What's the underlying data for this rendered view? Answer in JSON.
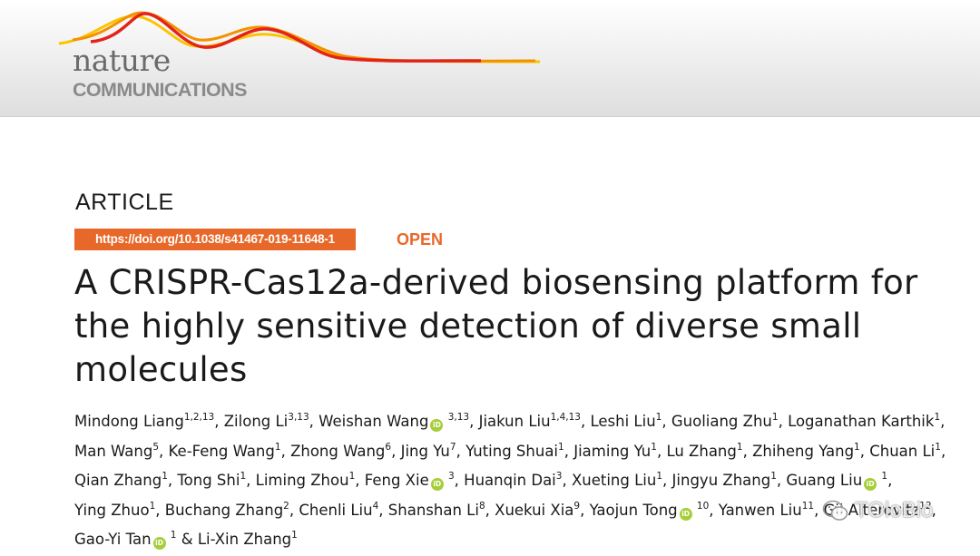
{
  "journal": {
    "logo_line1": "nature",
    "logo_line2": "COMMUNICATIONS"
  },
  "article": {
    "type": "ARTICLE",
    "doi": "https://doi.org/10.1038/s41467-019-11648-1",
    "access": "OPEN",
    "title": "A CRISPR-Cas12a-derived biosensing platform for the highly sensitive detection of diverse small molecules"
  },
  "authors": [
    {
      "name": "Mindong Liang",
      "aff": "1,2,13",
      "orcid": false
    },
    {
      "name": "Zilong Li",
      "aff": "3,13",
      "orcid": false
    },
    {
      "name": "Weishan Wang",
      "aff": "3,13",
      "orcid": true
    },
    {
      "name": "Jiakun Liu",
      "aff": "1,4,13",
      "orcid": false
    },
    {
      "name": "Leshi Liu",
      "aff": "1",
      "orcid": false
    },
    {
      "name": "Guoliang Zhu",
      "aff": "1",
      "orcid": false
    },
    {
      "name": "Loganathan Karthik",
      "aff": "1",
      "orcid": false
    },
    {
      "name": "Man Wang",
      "aff": "5",
      "orcid": false
    },
    {
      "name": "Ke-Feng Wang",
      "aff": "1",
      "orcid": false
    },
    {
      "name": "Zhong Wang",
      "aff": "6",
      "orcid": false
    },
    {
      "name": "Jing Yu",
      "aff": "7",
      "orcid": false
    },
    {
      "name": "Yuting Shuai",
      "aff": "1",
      "orcid": false
    },
    {
      "name": "Jiaming Yu",
      "aff": "1",
      "orcid": false
    },
    {
      "name": "Lu Zhang",
      "aff": "1",
      "orcid": false
    },
    {
      "name": "Zhiheng Yang",
      "aff": "1",
      "orcid": false
    },
    {
      "name": "Chuan Li",
      "aff": "1",
      "orcid": false
    },
    {
      "name": "Qian Zhang",
      "aff": "1",
      "orcid": false
    },
    {
      "name": "Tong Shi",
      "aff": "1",
      "orcid": false
    },
    {
      "name": "Liming Zhou",
      "aff": "1",
      "orcid": false
    },
    {
      "name": "Feng Xie",
      "aff": "3",
      "orcid": true
    },
    {
      "name": "Huanqin Dai",
      "aff": "3",
      "orcid": false
    },
    {
      "name": "Xueting Liu",
      "aff": "1",
      "orcid": false
    },
    {
      "name": "Jingyu Zhang",
      "aff": "1",
      "orcid": false
    },
    {
      "name": "Guang Liu",
      "aff": "1",
      "orcid": true
    },
    {
      "name": "Ying Zhuo",
      "aff": "1",
      "orcid": false
    },
    {
      "name": "Buchang Zhang",
      "aff": "2",
      "orcid": false
    },
    {
      "name": "Chenli Liu",
      "aff": "4",
      "orcid": false
    },
    {
      "name": "Shanshan Li",
      "aff": "8",
      "orcid": false
    },
    {
      "name": "Xuekui Xia",
      "aff": "9",
      "orcid": false
    },
    {
      "name": "Yaojun Tong",
      "aff": "10",
      "orcid": true
    },
    {
      "name": "Yanwen Liu",
      "aff": "11",
      "orcid": false
    },
    {
      "name": "Gil Alterovitz",
      "aff": "12",
      "orcid": false
    },
    {
      "name": "Gao-Yi Tan",
      "aff": "1",
      "orcid": true
    },
    {
      "name": "Li-Xin Zhang",
      "aff": "1",
      "orcid": false
    }
  ],
  "orcid_label": "iD",
  "watermark": "TOloBio",
  "colors": {
    "accent_orange": "#e8682a",
    "orcid_green": "#a6ce39",
    "wave_red": "#e2231a",
    "wave_orange": "#f39200",
    "wave_yellow": "#fcc300"
  }
}
